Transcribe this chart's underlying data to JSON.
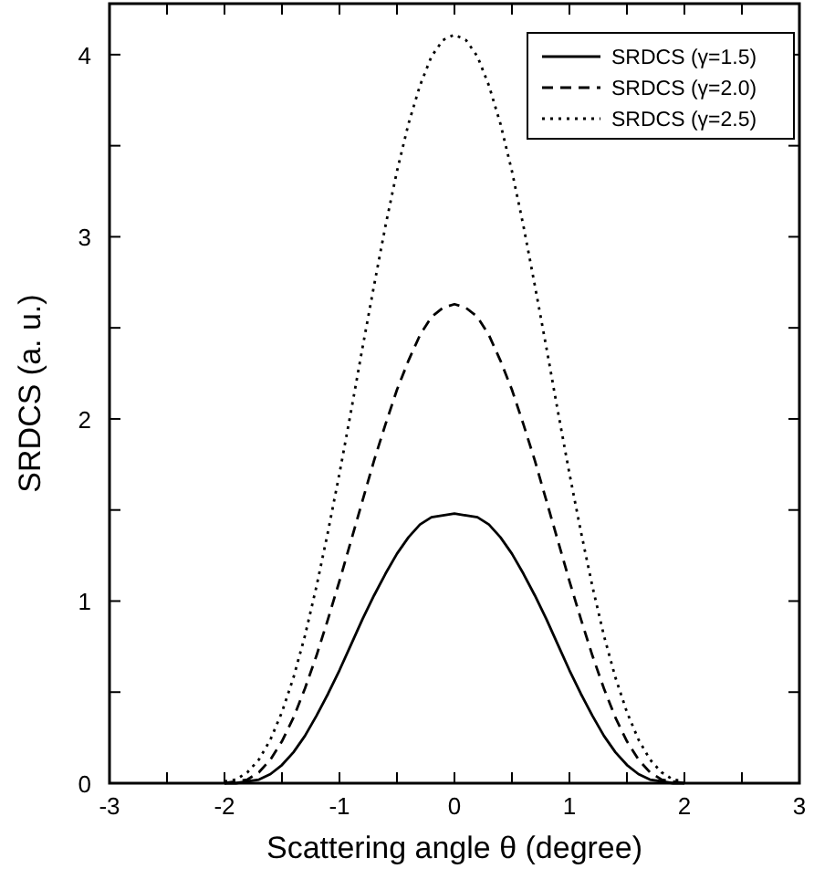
{
  "chart_data": {
    "type": "line",
    "xlabel": "Scattering angle θ (degree)",
    "ylabel": "SRDCS (a. u.)",
    "x": [
      -2.0,
      -1.9,
      -1.8,
      -1.7,
      -1.6,
      -1.5,
      -1.4,
      -1.3,
      -1.2,
      -1.1,
      -1.0,
      -0.9,
      -0.8,
      -0.7,
      -0.6,
      -0.5,
      -0.4,
      -0.3,
      -0.2,
      -0.1,
      0,
      0.1,
      0.2,
      0.3,
      0.4,
      0.5,
      0.6,
      0.7,
      0.8,
      0.9,
      1.0,
      1.1,
      1.2,
      1.3,
      1.4,
      1.5,
      1.6,
      1.7,
      1.8,
      1.9,
      2.0
    ],
    "series": [
      {
        "name": "SRDCS (γ=1.5)",
        "color": "#000000",
        "line_style": "solid",
        "values": [
          0,
          0,
          0.01,
          0.02,
          0.05,
          0.1,
          0.17,
          0.26,
          0.37,
          0.49,
          0.62,
          0.76,
          0.9,
          1.03,
          1.15,
          1.26,
          1.35,
          1.42,
          1.46,
          1.47,
          1.48,
          1.47,
          1.46,
          1.42,
          1.35,
          1.26,
          1.15,
          1.03,
          0.9,
          0.76,
          0.62,
          0.49,
          0.37,
          0.26,
          0.17,
          0.1,
          0.05,
          0.02,
          0.01,
          0,
          0
        ]
      },
      {
        "name": "SRDCS (γ=2.0)",
        "color": "#000000",
        "line_style": "dashed",
        "values": [
          0,
          0.01,
          0.02,
          0.06,
          0.13,
          0.23,
          0.36,
          0.52,
          0.7,
          0.9,
          1.11,
          1.33,
          1.55,
          1.77,
          1.97,
          2.16,
          2.32,
          2.46,
          2.56,
          2.61,
          2.63,
          2.61,
          2.56,
          2.46,
          2.32,
          2.16,
          1.97,
          1.77,
          1.55,
          1.33,
          1.11,
          0.9,
          0.7,
          0.52,
          0.36,
          0.23,
          0.13,
          0.06,
          0.02,
          0.01,
          0
        ]
      },
      {
        "name": "SRDCS (γ=2.5)",
        "color": "#000000",
        "line_style": "dotted",
        "values": [
          0.01,
          0.02,
          0.06,
          0.13,
          0.24,
          0.39,
          0.58,
          0.81,
          1.08,
          1.38,
          1.7,
          2.04,
          2.39,
          2.73,
          3.06,
          3.36,
          3.62,
          3.83,
          3.99,
          4.08,
          4.11,
          4.08,
          3.99,
          3.83,
          3.62,
          3.36,
          3.06,
          2.73,
          2.39,
          2.04,
          1.7,
          1.38,
          1.08,
          0.81,
          0.58,
          0.39,
          0.24,
          0.13,
          0.06,
          0.02,
          0.01
        ]
      }
    ],
    "xlim": [
      -3,
      3
    ],
    "ylim": [
      0,
      4.28
    ],
    "xticks": [
      -3,
      {
        "value": -2.5,
        "label": null
      },
      -2,
      {
        "value": -1.5,
        "label": null
      },
      -1,
      {
        "value": -0.5,
        "label": null
      },
      0,
      {
        "value": 0.5,
        "label": null
      },
      1,
      {
        "value": 1.5,
        "label": null
      },
      2,
      {
        "value": 2.5,
        "label": null
      },
      3
    ],
    "yticks": [
      0,
      {
        "value": 0.5,
        "label": null
      },
      1,
      {
        "value": 1.5,
        "label": null
      },
      2,
      {
        "value": 2.5,
        "label": null
      },
      3,
      {
        "value": 3.5,
        "label": null
      },
      4
    ],
    "grid": false,
    "legend": "top right",
    "marker": "none"
  }
}
